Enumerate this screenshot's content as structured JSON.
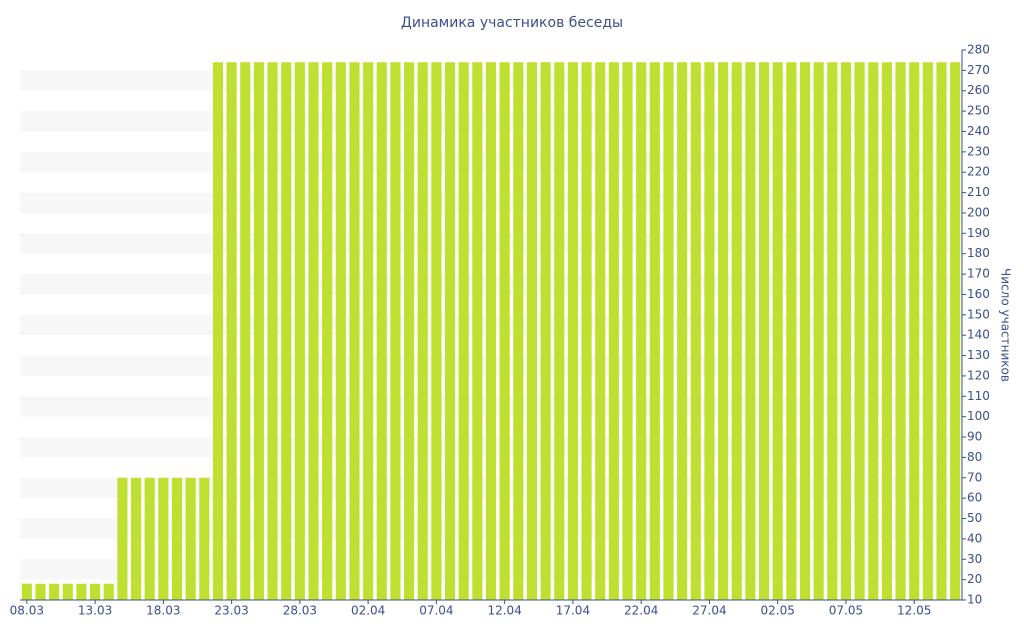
{
  "chart_data": {
    "type": "bar",
    "title": "Динамика участников беседы",
    "y_axis_label": "Число участников",
    "categories": [
      "08.03",
      null,
      null,
      null,
      null,
      "13.03",
      null,
      null,
      null,
      null,
      "18.03",
      null,
      null,
      null,
      null,
      "23.03",
      null,
      null,
      null,
      null,
      "28.03",
      null,
      null,
      null,
      null,
      "02.04",
      null,
      null,
      null,
      null,
      "07.04",
      null,
      null,
      null,
      null,
      "12.04",
      null,
      null,
      null,
      null,
      "17.04",
      null,
      null,
      null,
      null,
      "22.04",
      null,
      null,
      null,
      null,
      "27.04",
      null,
      null,
      null,
      null,
      "02.05",
      null,
      null,
      null,
      null,
      "07.05",
      null,
      null,
      null,
      null,
      "12.05",
      null,
      null,
      null
    ],
    "values": [
      18,
      18,
      18,
      18,
      18,
      18,
      18,
      70,
      70,
      70,
      70,
      70,
      70,
      70,
      274,
      274,
      274,
      274,
      274,
      274,
      274,
      274,
      274,
      274,
      274,
      274,
      274,
      274,
      274,
      274,
      274,
      274,
      274,
      274,
      274,
      274,
      274,
      274,
      274,
      274,
      274,
      274,
      274,
      274,
      274,
      274,
      274,
      274,
      274,
      274,
      274,
      274,
      274,
      274,
      274,
      274,
      274,
      274,
      274,
      274,
      274,
      274,
      274,
      274,
      274,
      274,
      274,
      274,
      274
    ],
    "color": "#bfe030",
    "ylim": [
      10,
      280
    ],
    "yticks": [
      10,
      20,
      30,
      40,
      50,
      60,
      70,
      80,
      90,
      100,
      110,
      120,
      130,
      140,
      150,
      160,
      170,
      180,
      190,
      200,
      210,
      220,
      230,
      240,
      250,
      260,
      270,
      280
    ],
    "grid": true
  }
}
